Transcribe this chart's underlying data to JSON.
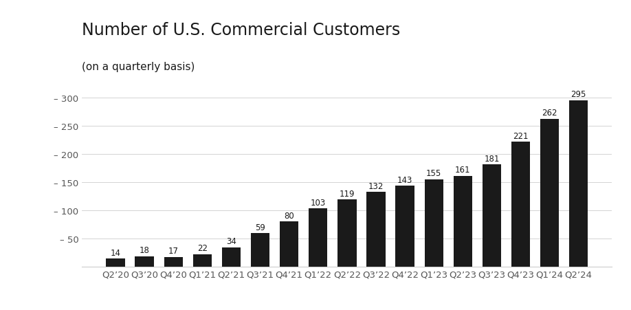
{
  "title": "Number of U.S. Commercial Customers",
  "subtitle": "(on a quarterly basis)",
  "categories": [
    "Q2’20",
    "Q3’20",
    "Q4’20",
    "Q1’21",
    "Q2’21",
    "Q3’21",
    "Q4’21",
    "Q1’22",
    "Q2’22",
    "Q3’22",
    "Q4’22",
    "Q1’23",
    "Q2’23",
    "Q3’23",
    "Q4’23",
    "Q1’24",
    "Q2’24"
  ],
  "values": [
    14,
    18,
    17,
    22,
    34,
    59,
    80,
    103,
    119,
    132,
    143,
    155,
    161,
    181,
    221,
    262,
    295
  ],
  "bar_color": "#1a1a1a",
  "background_color": "#ffffff",
  "title_fontsize": 17,
  "subtitle_fontsize": 11,
  "ylabel_ticks": [
    50,
    100,
    150,
    200,
    250,
    300
  ],
  "ylim": [
    0,
    325
  ],
  "annotation_fontsize": 8.5,
  "tick_label_fontsize": 9.5,
  "grid_color": "#cccccc",
  "title_color": "#1a1a1a",
  "text_color": "#1a1a1a",
  "axis_label_color": "#555555"
}
